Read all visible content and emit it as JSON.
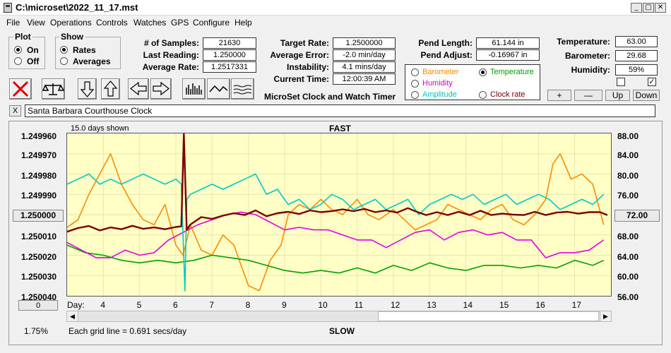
{
  "window": {
    "title": "C:\\microset\\2022_11_17.mst",
    "minimize": "_",
    "maximize": "□",
    "close": "✕"
  },
  "menu": [
    "File",
    "View",
    "Operations",
    "Controls",
    "Watches",
    "GPS",
    "Configure",
    "Help"
  ],
  "plot_group": {
    "title": "Plot",
    "on": "On",
    "off": "Off",
    "selected": "On"
  },
  "show_group": {
    "title": "Show",
    "rates": "Rates",
    "averages": "Averages",
    "selected": "Rates"
  },
  "stats1": [
    {
      "label": "# of Samples:",
      "value": "21630"
    },
    {
      "label": "Last Reading:",
      "value": "1.250000"
    },
    {
      "label": "Average Rate:",
      "value": "1.2517331"
    }
  ],
  "stats2": [
    {
      "label": "Target Rate:",
      "value": "1.2500000"
    },
    {
      "label": "Average Error:",
      "value": "-2.0 min/day"
    },
    {
      "label": "Instability:",
      "value": "4.1 mins/day"
    },
    {
      "label": "Current Time:",
      "value": "12:00:39 AM"
    }
  ],
  "pend": [
    {
      "label": "Pend Length:",
      "value": "61.144 in"
    },
    {
      "label": "Pend Adjust:",
      "value": "-0.16967 in"
    }
  ],
  "env": [
    {
      "label": "Temperature:",
      "value": "63.00"
    },
    {
      "label": "Barometer:",
      "value": "29.68"
    },
    {
      "label": "Humidity:",
      "value": "59%"
    }
  ],
  "series_select": {
    "barometer": {
      "label": "Barometer",
      "color": "#ff8c00",
      "checked": false
    },
    "temperature": {
      "label": "Temperature",
      "color": "#00a000",
      "checked": true
    },
    "humidity": {
      "label": "Humidity",
      "color": "#e000e0",
      "checked": false
    },
    "amplitude": {
      "label": "Amplitude",
      "color": "#00c8c8",
      "checked": false
    },
    "clock_rate": {
      "label": "Clock rate",
      "color": "#7a0000",
      "checked": false
    }
  },
  "adjust_buttons": {
    "plus": "+",
    "minus": "—",
    "up": "Up",
    "down": "Down"
  },
  "app_label": "MicroSet Clock and Watch Timer",
  "clock_name": "Santa Barbara Courthouse Clock",
  "close_x": "X",
  "center_button": "1.250000",
  "right_button": "72.00",
  "zero_button": "0",
  "percent": "1.75%",
  "chart_data": {
    "type": "line",
    "title": "FAST",
    "bottom_label": "SLOW",
    "days_shown": "15.0 days shown",
    "grid_note": "Each grid line = 0.691 secs/day",
    "xlabel": "Day:",
    "x_ticks": [
      4,
      5,
      6,
      7,
      8,
      9,
      10,
      11,
      12,
      13,
      14,
      15,
      16,
      17
    ],
    "xlim": [
      3.0,
      18.0
    ],
    "y_left_ticks": [
      "1.249960",
      "1.249970",
      "1.249980",
      "1.249990",
      "1.250000",
      "1.250010",
      "1.250020",
      "1.250030",
      "1.250040"
    ],
    "y_left_range": [
      1.24996,
      1.25004
    ],
    "y_right_ticks": [
      "88.00",
      "84.00",
      "80.00",
      "76.00",
      "72.00",
      "68.00",
      "64.00",
      "60.00",
      "56.00"
    ],
    "y_right_range": [
      56,
      88
    ],
    "series": [
      {
        "key": "barometer",
        "color": "#ff8c00",
        "x": [
          3.0,
          3.3,
          3.6,
          3.9,
          4.2,
          4.5,
          4.8,
          5.1,
          5.4,
          5.7,
          6.0,
          6.2,
          6.4,
          6.7,
          7.0,
          7.3,
          7.6,
          8.0,
          8.3,
          8.6,
          8.9,
          9.1,
          9.4,
          9.7,
          10.0,
          10.3,
          10.6,
          11.0,
          11.3,
          11.6,
          12.0,
          12.3,
          12.6,
          12.9,
          13.2,
          13.5,
          13.8,
          14.1,
          14.4,
          14.7,
          15.0,
          15.3,
          15.6,
          15.9,
          16.2,
          16.4,
          16.6,
          16.9,
          17.2,
          17.5,
          17.8
        ],
        "y": [
          69.5,
          71,
          76,
          80,
          84,
          78,
          74,
          71,
          70,
          74,
          66,
          64,
          70,
          65,
          64,
          68,
          66,
          58,
          57,
          63,
          66,
          72,
          74,
          73,
          75,
          73,
          72,
          75,
          72,
          71,
          73,
          71,
          69,
          70,
          71,
          74,
          73,
          72,
          71,
          73,
          74,
          71,
          70,
          72,
          75,
          82,
          84,
          79,
          80,
          78,
          70
        ]
      },
      {
        "key": "temperature",
        "color": "#00a000",
        "x": [
          3.0,
          3.5,
          4.0,
          4.5,
          5.0,
          5.5,
          6.0,
          6.5,
          7.0,
          7.5,
          8.0,
          8.5,
          9.0,
          9.5,
          10.0,
          10.5,
          11.0,
          11.5,
          12.0,
          12.5,
          13.0,
          13.5,
          14.0,
          14.5,
          15.0,
          15.5,
          16.0,
          16.5,
          17.0,
          17.5,
          17.8
        ],
        "y": [
          66,
          64.5,
          64,
          63,
          62.5,
          63,
          62.5,
          63,
          64,
          63.5,
          63,
          62,
          61,
          60.5,
          61,
          60.5,
          61.5,
          60.5,
          62,
          61,
          62.5,
          61.5,
          61,
          62,
          62,
          61.5,
          62,
          61.5,
          63,
          62,
          63
        ]
      },
      {
        "key": "humidity",
        "color": "#e000e0",
        "x": [
          3.0,
          3.4,
          3.8,
          4.2,
          4.6,
          5.0,
          5.4,
          5.8,
          6.2,
          6.6,
          7.0,
          7.4,
          7.8,
          8.2,
          8.6,
          9.0,
          9.4,
          9.8,
          10.2,
          10.6,
          11.0,
          11.4,
          11.8,
          12.2,
          12.6,
          13.0,
          13.4,
          13.8,
          14.2,
          14.6,
          15.0,
          15.4,
          15.8,
          16.2,
          16.6,
          17.0,
          17.4,
          17.8
        ],
        "y": [
          66.5,
          65,
          63.5,
          63.5,
          65,
          64,
          64.5,
          67,
          68.5,
          70,
          71,
          72,
          72.5,
          72,
          70.5,
          69,
          69.5,
          69,
          69,
          68,
          67,
          67,
          65.5,
          67,
          68.5,
          69,
          67,
          68.5,
          69,
          68,
          68.5,
          67,
          67,
          63.5,
          64.5,
          64.5,
          65,
          67
        ]
      },
      {
        "key": "amplitude",
        "color": "#00c8c8",
        "x": [
          3.0,
          3.3,
          3.6,
          3.9,
          4.2,
          4.5,
          4.8,
          5.1,
          5.4,
          5.7,
          6.0,
          6.15,
          6.25,
          6.3,
          6.4,
          6.7,
          7.0,
          7.3,
          7.6,
          7.9,
          8.2,
          8.5,
          8.8,
          9.1,
          9.4,
          9.7,
          10.0,
          10.3,
          10.6,
          10.9,
          11.2,
          11.5,
          11.8,
          12.1,
          12.4,
          12.7,
          13.0,
          13.3,
          13.6,
          13.9,
          14.2,
          14.5,
          14.8,
          15.1,
          15.4,
          15.7,
          16.0,
          16.3,
          16.6,
          16.9,
          17.2,
          17.5,
          17.8
        ],
        "y": [
          78,
          79,
          80,
          78,
          79,
          78,
          79,
          80,
          79,
          78,
          79,
          78,
          57,
          75,
          76,
          77,
          78,
          77,
          78,
          79,
          80,
          76,
          77,
          74,
          75,
          73,
          74,
          76,
          75,
          73,
          74,
          75,
          73,
          74,
          75,
          72,
          74,
          75,
          76,
          75,
          76,
          74,
          75,
          76,
          74,
          75,
          76,
          75,
          73,
          74,
          75,
          74,
          76
        ]
      }
    ],
    "clock_rate": {
      "x": [
        3.0,
        3.3,
        3.6,
        3.9,
        4.2,
        4.5,
        4.8,
        5.1,
        5.4,
        5.7,
        6.0,
        6.15,
        6.22,
        6.3,
        6.4,
        6.7,
        7.0,
        7.3,
        7.6,
        7.9,
        8.2,
        8.5,
        8.8,
        9.1,
        9.4,
        9.7,
        10.0,
        10.3,
        10.6,
        10.9,
        11.2,
        11.5,
        11.8,
        12.1,
        12.4,
        12.6,
        12.9,
        13.2,
        13.5,
        13.8,
        14.1,
        14.4,
        14.7,
        15.0,
        15.3,
        15.6,
        15.9,
        16.2,
        16.5,
        16.8,
        17.1,
        17.4,
        17.7,
        17.9
      ],
      "y": [
        1.2500084,
        1.2500066,
        1.2500056,
        1.2500078,
        1.2500063,
        1.2500072,
        1.2500055,
        1.250007,
        1.2500063,
        1.2500072,
        1.2500061,
        1.2500058,
        1.24996,
        1.2500075,
        1.2500049,
        1.2500012,
        1.2500021,
        1.2500005,
        1.2499993,
        1.2500002,
        1.2499979,
        1.2500008,
        1.2499993,
        1.2499986,
        1.2499997,
        1.2499979,
        1.2499988,
        1.2499983,
        1.2499974,
        1.2499983,
        1.2499972,
        1.2499988,
        1.2499979,
        1.249999,
        1.2499968,
        1.2499983,
        1.2500002,
        1.2499988,
        1.2500002,
        1.2499986,
        1.2500002,
        1.2499981,
        1.2500002,
        1.2499995,
        1.25,
        1.2500002,
        1.2499986,
        1.2500002,
        1.249999,
        1.2499986,
        1.2499995,
        1.2499988,
        1.2499988,
        1.2500002
      ]
    }
  }
}
